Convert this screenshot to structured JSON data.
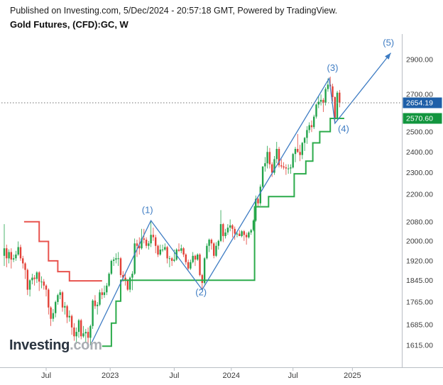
{
  "header": {
    "published_line": "Published on Investing.com, 5/Dec/2024 - 20:57:18 GMT, Powered by TradingView.",
    "title": "Gold Futures, (CFD):GC, W"
  },
  "watermark": {
    "brand": "Investing",
    "suffix": ".com"
  },
  "colors": {
    "up": "#22a34b",
    "down": "#e24137",
    "trail_green": "#2cab4b",
    "trail_red": "#e8534e",
    "wave": "#3e7cc3",
    "axis_text": "#3a3a3a",
    "axis_line": "#b9bec4",
    "last_price_line": "#707070",
    "last_price_badge": "#1e5fa8",
    "stop_badge": "#12953e"
  },
  "chart_data": {
    "type": "candlestick",
    "title": "Gold Futures, (CFD):GC, W",
    "symbol": "Gold Futures (CFD):GC",
    "timeframe": "W",
    "y_axis_scale": "log",
    "x_ticks": [
      {
        "week": 18,
        "label": "Jul"
      },
      {
        "week": 45.5,
        "label": "2023"
      },
      {
        "week": 73,
        "label": "Jul"
      },
      {
        "week": 97.5,
        "label": "2024"
      },
      {
        "week": 124,
        "label": "Jul"
      },
      {
        "week": 149.5,
        "label": "2025"
      }
    ],
    "y_ticks": [
      {
        "price": 2900,
        "label": "2900.00"
      },
      {
        "price": 2700,
        "label": "2700.00"
      },
      {
        "price": 2500,
        "label": "2500.00"
      },
      {
        "price": 2400,
        "label": "2400.00"
      },
      {
        "price": 2300,
        "label": "2300.00"
      },
      {
        "price": 2200,
        "label": "2200.00"
      },
      {
        "price": 2080,
        "label": "2080.00"
      },
      {
        "price": 2000,
        "label": "2000.00"
      },
      {
        "price": 1920,
        "label": "1920.00"
      },
      {
        "price": 1845,
        "label": "1845.00"
      },
      {
        "price": 1765,
        "label": "1765.00"
      },
      {
        "price": 1685,
        "label": "1685.00"
      },
      {
        "price": 1615,
        "label": "1615.00"
      }
    ],
    "last_price": {
      "value": 2654.19,
      "label": "2654.19",
      "color": "#1e5fa8"
    },
    "stop_price": {
      "value": 2570.6,
      "label": "2570.60",
      "color": "#12953e"
    },
    "wave_labels": [
      {
        "text": "(1)",
        "week": 61.5,
        "price": 2130
      },
      {
        "text": "(2)",
        "week": 84.5,
        "price": 1800
      },
      {
        "text": "(3)",
        "week": 141,
        "price": 2850
      },
      {
        "text": "(4)",
        "week": 145.7,
        "price": 2515
      },
      {
        "text": "(5)",
        "week": 165,
        "price": 3000
      }
    ],
    "wave_path": {
      "points": [
        [
          37,
          1615
        ],
        [
          63,
          2085
        ],
        [
          85,
          1810
        ],
        [
          139.5,
          2790
        ],
        [
          142,
          2545
        ],
        [
          166,
          2940
        ]
      ]
    },
    "trail_red": {
      "points": [
        [
          8.5,
          2080
        ],
        [
          15,
          2080
        ],
        [
          15,
          1998
        ],
        [
          19,
          1998
        ],
        [
          19,
          1920
        ],
        [
          23,
          1920
        ],
        [
          23,
          1878
        ],
        [
          28,
          1878
        ],
        [
          28,
          1843
        ],
        [
          42,
          1843
        ]
      ]
    },
    "trail_green": {
      "points": [
        [
          42,
          1612
        ],
        [
          46,
          1612
        ],
        [
          46,
          1690
        ],
        [
          48,
          1690
        ],
        [
          48,
          1768
        ],
        [
          50,
          1768
        ],
        [
          50,
          1845
        ],
        [
          107.5,
          1845
        ],
        [
          107.5,
          2145
        ],
        [
          113.5,
          2145
        ],
        [
          113.5,
          2190
        ],
        [
          124.5,
          2190
        ],
        [
          124.5,
          2295
        ],
        [
          129.5,
          2295
        ],
        [
          129.5,
          2355
        ],
        [
          132.5,
          2355
        ],
        [
          132.5,
          2445
        ],
        [
          135.5,
          2445
        ],
        [
          135.5,
          2502
        ],
        [
          140,
          2502
        ],
        [
          140,
          2570.6
        ],
        [
          146,
          2570.6
        ]
      ]
    },
    "candles": [
      [
        1940,
        2070,
        1900,
        1970
      ],
      [
        1970,
        1985,
        1895,
        1930
      ],
      [
        1930,
        1966,
        1910,
        1955
      ],
      [
        1955,
        1970,
        1890,
        1925
      ],
      [
        1925,
        1945,
        1915,
        1930
      ],
      [
        1930,
        1960,
        1920,
        1945
      ],
      [
        1945,
        1998,
        1940,
        1975
      ],
      [
        1975,
        1985,
        1920,
        1930
      ],
      [
        1930,
        1940,
        1890,
        1910
      ],
      [
        1910,
        1915,
        1850,
        1885
      ],
      [
        1885,
        1890,
        1790,
        1810
      ],
      [
        1810,
        1850,
        1785,
        1845
      ],
      [
        1845,
        1870,
        1830,
        1855
      ],
      [
        1855,
        1865,
        1825,
        1850
      ],
      [
        1850,
        1880,
        1835,
        1875
      ],
      [
        1875,
        1880,
        1805,
        1840
      ],
      [
        1840,
        1860,
        1815,
        1840
      ],
      [
        1840,
        1850,
        1810,
        1825
      ],
      [
        1825,
        1830,
        1785,
        1810
      ],
      [
        1810,
        1815,
        1720,
        1745
      ],
      [
        1745,
        1750,
        1680,
        1705
      ],
      [
        1705,
        1740,
        1695,
        1725
      ],
      [
        1725,
        1770,
        1710,
        1765
      ],
      [
        1765,
        1795,
        1755,
        1790
      ],
      [
        1790,
        1810,
        1775,
        1800
      ],
      [
        1800,
        1805,
        1730,
        1745
      ],
      [
        1745,
        1765,
        1720,
        1750
      ],
      [
        1750,
        1755,
        1690,
        1710
      ],
      [
        1710,
        1735,
        1695,
        1715
      ],
      [
        1715,
        1720,
        1650,
        1675
      ],
      [
        1675,
        1690,
        1630,
        1645
      ],
      [
        1645,
        1675,
        1620,
        1660
      ],
      [
        1660,
        1705,
        1640,
        1700
      ],
      [
        1700,
        1705,
        1635,
        1645
      ],
      [
        1645,
        1680,
        1640,
        1655
      ],
      [
        1655,
        1670,
        1625,
        1660
      ],
      [
        1660,
        1675,
        1620,
        1640
      ],
      [
        1640,
        1685,
        1615,
        1680
      ],
      [
        1680,
        1775,
        1670,
        1770
      ],
      [
        1770,
        1790,
        1740,
        1750
      ],
      [
        1750,
        1765,
        1720,
        1755
      ],
      [
        1755,
        1810,
        1750,
        1800
      ],
      [
        1800,
        1815,
        1775,
        1790
      ],
      [
        1790,
        1825,
        1780,
        1800
      ],
      [
        1800,
        1835,
        1790,
        1825
      ],
      [
        1825,
        1875,
        1820,
        1870
      ],
      [
        1870,
        1925,
        1865,
        1920
      ],
      [
        1920,
        1935,
        1900,
        1925
      ],
      [
        1925,
        1950,
        1910,
        1930
      ],
      [
        1930,
        1955,
        1900,
        1930
      ],
      [
        1930,
        1935,
        1855,
        1865
      ],
      [
        1865,
        1880,
        1840,
        1855
      ],
      [
        1855,
        1870,
        1825,
        1845
      ],
      [
        1845,
        1850,
        1805,
        1810
      ],
      [
        1810,
        1860,
        1800,
        1855
      ],
      [
        1855,
        1880,
        1808,
        1870
      ],
      [
        1870,
        2010,
        1865,
        1990
      ],
      [
        1990,
        2005,
        1935,
        1980
      ],
      [
        1980,
        2015,
        1945,
        1970
      ],
      [
        1970,
        2050,
        1965,
        2010
      ],
      [
        2010,
        2050,
        1990,
        2005
      ],
      [
        2005,
        2015,
        1970,
        1980
      ],
      [
        1980,
        2000,
        1965,
        1990
      ],
      [
        1990,
        2085,
        1975,
        2025
      ],
      [
        2025,
        2055,
        2000,
        2015
      ],
      [
        2015,
        2025,
        1950,
        1980
      ],
      [
        1980,
        1985,
        1935,
        1945
      ],
      [
        1945,
        1985,
        1940,
        1965
      ],
      [
        1965,
        1985,
        1955,
        1965
      ],
      [
        1965,
        1990,
        1960,
        1975
      ],
      [
        1975,
        1980,
        1910,
        1930
      ],
      [
        1930,
        1940,
        1895,
        1930
      ],
      [
        1930,
        1935,
        1900,
        1920
      ],
      [
        1920,
        1965,
        1915,
        1925
      ],
      [
        1925,
        1970,
        1920,
        1965
      ],
      [
        1965,
        1990,
        1955,
        1960
      ],
      [
        1960,
        1985,
        1950,
        1970
      ],
      [
        1970,
        1975,
        1935,
        1945
      ],
      [
        1945,
        1950,
        1905,
        1915
      ],
      [
        1915,
        1925,
        1885,
        1890
      ],
      [
        1890,
        1925,
        1885,
        1915
      ],
      [
        1915,
        1955,
        1910,
        1940
      ],
      [
        1940,
        1945,
        1900,
        1925
      ],
      [
        1925,
        1950,
        1920,
        1945
      ],
      [
        1945,
        1950,
        1860,
        1865
      ],
      [
        1865,
        1870,
        1810,
        1835
      ],
      [
        1835,
        1935,
        1830,
        1930
      ],
      [
        1930,
        1990,
        1925,
        1980
      ],
      [
        1980,
        2010,
        1955,
        2005
      ],
      [
        2005,
        2010,
        1965,
        1990
      ],
      [
        1990,
        1995,
        1930,
        1940
      ],
      [
        1940,
        1995,
        1935,
        1980
      ],
      [
        1980,
        2005,
        1965,
        2000
      ],
      [
        2000,
        2130,
        1995,
        2070
      ],
      [
        2070,
        2075,
        1995,
        2020
      ],
      [
        2020,
        2050,
        2010,
        2035
      ],
      [
        2035,
        2070,
        2025,
        2055
      ],
      [
        2055,
        2090,
        2040,
        2065
      ],
      [
        2065,
        2070,
        2015,
        2050
      ],
      [
        2050,
        2060,
        2005,
        2030
      ],
      [
        2030,
        2040,
        2015,
        2030
      ],
      [
        2030,
        2045,
        2020,
        2020
      ],
      [
        2020,
        2045,
        2015,
        2040
      ],
      [
        2040,
        2045,
        2000,
        2025
      ],
      [
        2025,
        2035,
        1985,
        2015
      ],
      [
        2015,
        2040,
        2010,
        2035
      ],
      [
        2035,
        2050,
        2025,
        2045
      ],
      [
        2045,
        2090,
        2040,
        2085
      ],
      [
        2085,
        2195,
        2080,
        2180
      ],
      [
        2180,
        2185,
        2145,
        2160
      ],
      [
        2160,
        2245,
        2150,
        2235
      ],
      [
        2235,
        2330,
        2230,
        2330
      ],
      [
        2330,
        2375,
        2305,
        2345
      ],
      [
        2345,
        2430,
        2320,
        2400
      ],
      [
        2400,
        2420,
        2320,
        2340
      ],
      [
        2340,
        2350,
        2280,
        2300
      ],
      [
        2300,
        2380,
        2290,
        2365
      ],
      [
        2365,
        2450,
        2345,
        2415
      ],
      [
        2415,
        2425,
        2325,
        2335
      ],
      [
        2335,
        2365,
        2320,
        2330
      ],
      [
        2330,
        2350,
        2315,
        2325
      ],
      [
        2325,
        2340,
        2290,
        2320
      ],
      [
        2320,
        2340,
        2295,
        2320
      ],
      [
        2320,
        2340,
        2295,
        2325
      ],
      [
        2325,
        2395,
        2320,
        2390
      ],
      [
        2390,
        2425,
        2350,
        2415
      ],
      [
        2415,
        2490,
        2395,
        2400
      ],
      [
        2400,
        2435,
        2355,
        2385
      ],
      [
        2385,
        2450,
        2365,
        2445
      ],
      [
        2445,
        2475,
        2405,
        2470
      ],
      [
        2470,
        2530,
        2440,
        2510
      ],
      [
        2510,
        2550,
        2495,
        2535
      ],
      [
        2535,
        2560,
        2500,
        2525
      ],
      [
        2525,
        2590,
        2515,
        2580
      ],
      [
        2580,
        2650,
        2570,
        2645
      ],
      [
        2645,
        2690,
        2625,
        2660
      ],
      [
        2660,
        2700,
        2640,
        2670
      ],
      [
        2670,
        2680,
        2605,
        2655
      ],
      [
        2655,
        2740,
        2640,
        2730
      ],
      [
        2730,
        2790,
        2715,
        2755
      ],
      [
        2755,
        2800,
        2730,
        2745
      ],
      [
        2745,
        2760,
        2660,
        2685
      ],
      [
        2685,
        2690,
        2545,
        2570
      ],
      [
        2570,
        2720,
        2565,
        2710
      ],
      [
        2710,
        2725,
        2630,
        2655
      ]
    ]
  }
}
